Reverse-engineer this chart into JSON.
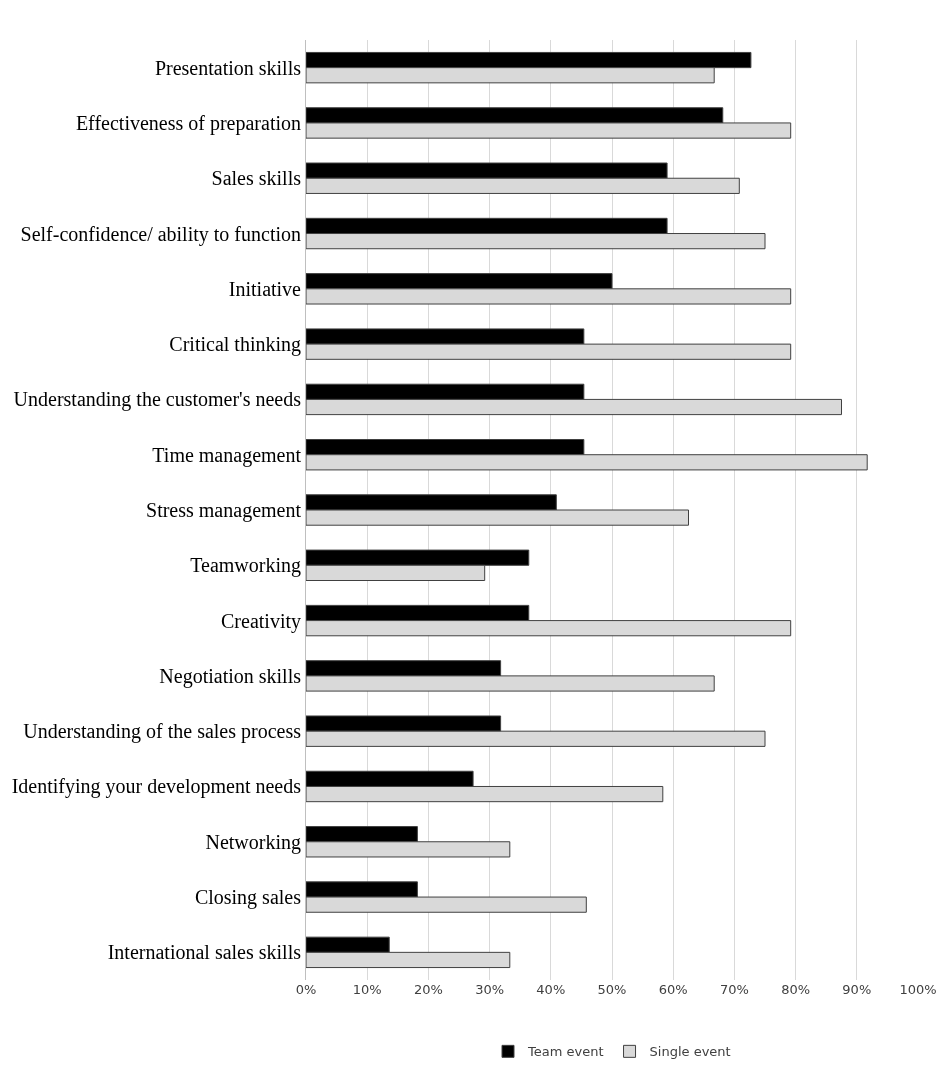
{
  "chart_data": {
    "type": "bar",
    "orientation": "horizontal",
    "categories": [
      "Presentation skills",
      "Effectiveness of preparation",
      "Sales skills",
      "Self-confidence/ ability to function",
      "Initiative",
      "Critical thinking",
      "Understanding the customer's needs",
      "Time management",
      "Stress management",
      "Teamworking",
      "Creativity",
      "Negotiation skills",
      "Understanding of the sales process",
      "Identifying your development needs",
      "Networking",
      "Closing sales",
      "International sales skills"
    ],
    "series": [
      {
        "name": "Team event",
        "color": "#000000",
        "values": [
          72.7,
          68.1,
          59.0,
          59.0,
          50.0,
          45.4,
          45.4,
          45.4,
          40.9,
          36.4,
          36.4,
          31.8,
          31.8,
          27.3,
          18.2,
          18.2,
          13.6
        ]
      },
      {
        "name": "Single event",
        "color": "#d9d9d9",
        "values": [
          66.7,
          79.2,
          70.8,
          75.0,
          79.2,
          79.2,
          87.5,
          91.7,
          62.5,
          29.2,
          79.2,
          66.7,
          75.0,
          58.3,
          33.3,
          45.8,
          33.3
        ]
      }
    ],
    "xlim": [
      0,
      100
    ],
    "xticks": [
      {
        "value": 0,
        "label": "0%"
      },
      {
        "value": 10,
        "label": "10%"
      },
      {
        "value": 20,
        "label": "20%"
      },
      {
        "value": 30,
        "label": "30%"
      },
      {
        "value": 40,
        "label": "40%"
      },
      {
        "value": 50,
        "label": "50%"
      },
      {
        "value": 60,
        "label": "60%"
      },
      {
        "value": 70,
        "label": "70%"
      },
      {
        "value": 80,
        "label": "80%"
      },
      {
        "value": 90,
        "label": "90%"
      },
      {
        "value": 100,
        "label": "100%"
      }
    ],
    "grid": "x",
    "legend": "bottom"
  }
}
